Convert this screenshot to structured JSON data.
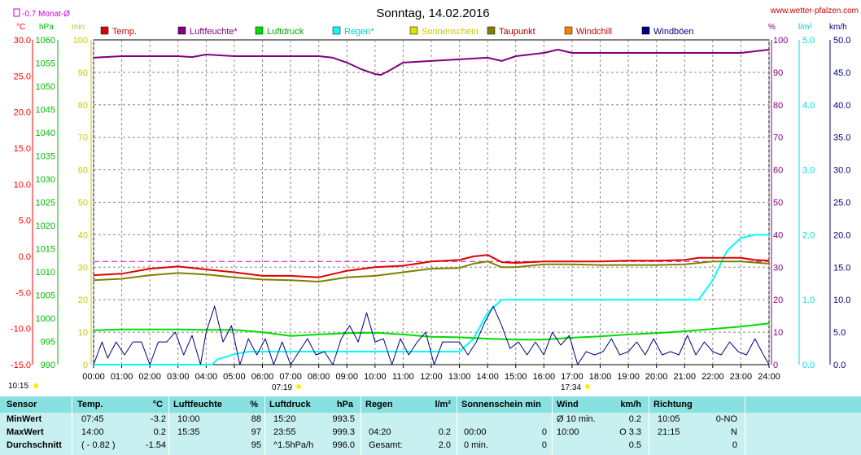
{
  "header": {
    "title": "Sonntag, 14.02.2016",
    "url": "www.wetter-pfalzen.com",
    "monat_label": "-0.7 Monat-Ø",
    "monat_color": "#cc00cc",
    "left_units": {
      "temp": "°C",
      "pressure": "hPa",
      "min": "min"
    },
    "right_units": {
      "percent": "%",
      "rain": "l/m²",
      "wind": "km/h"
    }
  },
  "legend": [
    {
      "label": "Temp.",
      "color": "#e00000",
      "text_color": "#cc0000"
    },
    {
      "label": "Luftfeuchte*",
      "color": "#800080",
      "text_color": "#800080"
    },
    {
      "label": "Luftdruck",
      "color": "#00dd00",
      "text_color": "#00aa00"
    },
    {
      "label": "Regen*",
      "color": "#00ffff",
      "text_color": "#00cccc"
    },
    {
      "label": "Sonnenschein",
      "color": "#e0e000",
      "text_color": "#c8c800"
    },
    {
      "label": "Taupunkt",
      "color": "#808000",
      "text_color": "#a00000"
    },
    {
      "label": "Windchill",
      "color": "#ff8000",
      "text_color": "#cc0000"
    },
    {
      "label": "Windböen",
      "color": "#000080",
      "text_color": "#000080"
    }
  ],
  "sun": {
    "sunrise_label": "07:19",
    "sunset_label": "17:34",
    "corner_label": "10:15"
  },
  "chart_data": {
    "type": "line",
    "title": "Sonntag, 14.02.2016",
    "x_unit": "hours",
    "x_ticks": [
      "00:00",
      "01:00",
      "02:00",
      "03:00",
      "04:00",
      "05:00",
      "06:00",
      "07:00",
      "08:00",
      "09:00",
      "10:00",
      "11:00",
      "12:00",
      "13:00",
      "14:00",
      "15:00",
      "16:00",
      "17:00",
      "18:00",
      "19:00",
      "20:00",
      "21:00",
      "22:00",
      "23:00",
      "24:00"
    ],
    "xlim": [
      0,
      24
    ],
    "grid": true,
    "axes": {
      "temp": {
        "label": "°C",
        "lim": [
          -15,
          30
        ],
        "ticks": [
          "30.0",
          "25.0",
          "20.0",
          "15.0",
          "10.0",
          "5.0",
          "0.0",
          "-5.0",
          "-10.0",
          "-15.0"
        ],
        "color": "#ff0000"
      },
      "pressure": {
        "label": "hPa",
        "lim": [
          990,
          1060
        ],
        "ticks": [
          "1060",
          "1055",
          "1050",
          "1045",
          "1040",
          "1035",
          "1030",
          "1025",
          "1020",
          "1015",
          "1010",
          "1005",
          "1000",
          "995",
          "990"
        ],
        "color": "#00bb00"
      },
      "sunshine_min": {
        "label": "min",
        "lim": [
          0,
          100
        ],
        "ticks": [
          "100",
          "90",
          "80",
          "70",
          "60",
          "50",
          "40",
          "30",
          "20",
          "10",
          "0"
        ],
        "color": "#c8c800"
      },
      "humidity": {
        "label": "%",
        "lim": [
          0,
          100
        ],
        "ticks": [
          "100",
          "90",
          "80",
          "70",
          "60",
          "50",
          "40",
          "30",
          "20",
          "10",
          "0"
        ],
        "color": "#800080"
      },
      "rain": {
        "label": "l/m²",
        "lim": [
          0,
          5
        ],
        "ticks": [
          "5.0",
          "4.0",
          "3.0",
          "2.0",
          "1.0",
          "0.0"
        ],
        "color": "#00e0e0"
      },
      "wind": {
        "label": "km/h",
        "lim": [
          0,
          50
        ],
        "ticks": [
          "50.0",
          "45.0",
          "40.0",
          "35.0",
          "30.0",
          "25.0",
          "20.0",
          "15.0",
          "10.0",
          "5.0",
          "0.0"
        ],
        "color": "#000080"
      }
    },
    "monthly_mean_temp": -0.7,
    "series": [
      {
        "name": "Temp.",
        "axis": "temp",
        "color": "#e00000",
        "x": [
          0,
          1,
          2,
          3,
          4,
          5,
          6,
          7,
          8,
          9,
          10,
          11,
          12,
          13,
          13.5,
          14,
          14.5,
          15,
          16,
          17,
          18,
          19,
          20,
          21,
          21.5,
          22,
          23,
          23.5,
          24
        ],
        "y": [
          -2.6,
          -2.4,
          -1.7,
          -1.4,
          -1.8,
          -2.2,
          -2.7,
          -2.7,
          -2.9,
          -2.0,
          -1.5,
          -1.3,
          -0.7,
          -0.5,
          0.0,
          0.2,
          -0.8,
          -0.9,
          -0.7,
          -0.7,
          -0.7,
          -0.6,
          -0.6,
          -0.5,
          -0.2,
          -0.2,
          -0.2,
          -0.5,
          -0.6
        ]
      },
      {
        "name": "Taupunkt",
        "axis": "temp",
        "color": "#808000",
        "x": [
          0,
          1,
          2,
          3,
          4,
          5,
          6,
          7,
          8,
          9,
          10,
          11,
          12,
          13,
          13.5,
          14,
          14.5,
          15,
          16,
          17,
          18,
          19,
          20,
          21,
          22,
          23,
          24
        ],
        "y": [
          -3.3,
          -3.1,
          -2.6,
          -2.3,
          -2.5,
          -2.9,
          -3.2,
          -3.3,
          -3.5,
          -2.9,
          -2.7,
          -2.2,
          -1.7,
          -1.6,
          -1.0,
          -0.7,
          -1.5,
          -1.5,
          -1.1,
          -1.1,
          -1.2,
          -1.2,
          -1.2,
          -1.1,
          -0.7,
          -0.7,
          -1.0
        ]
      },
      {
        "name": "Luftfeuchte*",
        "axis": "humidity",
        "color": "#800080",
        "x": [
          0,
          1,
          2,
          3,
          3.5,
          4,
          5,
          6,
          7,
          8,
          8.5,
          9,
          9.5,
          10,
          10.2,
          10.5,
          11,
          12,
          13,
          14,
          14.5,
          15,
          16,
          16.5,
          17,
          18,
          19,
          20,
          21,
          22,
          23,
          24
        ],
        "y": [
          94.5,
          95,
          95,
          95,
          94.7,
          95.5,
          95,
          95,
          95,
          95,
          94.5,
          93,
          91,
          89.5,
          89.2,
          90.5,
          93,
          93.5,
          94,
          94.5,
          93.5,
          95,
          96,
          97,
          96,
          96,
          96,
          96,
          96,
          96,
          96,
          97
        ]
      },
      {
        "name": "Luftdruck",
        "axis": "pressure",
        "color": "#00dd00",
        "x": [
          0,
          1,
          2,
          3,
          4,
          5,
          6,
          7,
          8,
          9,
          10,
          11,
          12,
          13,
          14,
          15,
          16,
          17,
          18,
          19,
          20,
          21,
          22,
          23,
          24
        ],
        "y": [
          997.4,
          997.6,
          997.6,
          997.6,
          997.5,
          997.5,
          997.0,
          996.2,
          996.5,
          996.8,
          996.9,
          996.5,
          996.0,
          995.9,
          995.6,
          995.4,
          995.4,
          995.8,
          996.1,
          996.5,
          996.8,
          997.2,
          997.7,
          998.2,
          998.9
        ]
      },
      {
        "name": "Regen*",
        "axis": "rain",
        "color": "#00ffff",
        "x": [
          0,
          4.2,
          4.4,
          5,
          5.5,
          6,
          7,
          8,
          9,
          10,
          11,
          12,
          13,
          13.5,
          14,
          14.5,
          15,
          15.5,
          16,
          17,
          18,
          19,
          20,
          21,
          21.5,
          22,
          22.5,
          23,
          23.5,
          24
        ],
        "y": [
          0,
          0,
          0.08,
          0.16,
          0.2,
          0.2,
          0.2,
          0.2,
          0.2,
          0.2,
          0.2,
          0.2,
          0.2,
          0.4,
          0.8,
          1.0,
          1.0,
          1.0,
          1.0,
          1.0,
          1.0,
          1.0,
          1.0,
          1.0,
          1.0,
          1.3,
          1.75,
          1.95,
          2.0,
          2.0
        ]
      },
      {
        "name": "Windböen",
        "axis": "wind",
        "color": "#000080",
        "x": [
          0,
          0.3,
          0.5,
          0.8,
          1.1,
          1.4,
          1.7,
          2.0,
          2.3,
          2.6,
          2.9,
          3.2,
          3.5,
          3.8,
          4.0,
          4.3,
          4.6,
          4.9,
          5.2,
          5.5,
          5.8,
          6.1,
          6.4,
          6.7,
          7.0,
          7.3,
          7.6,
          7.9,
          8.2,
          8.5,
          8.8,
          9.1,
          9.4,
          9.7,
          10.0,
          10.3,
          10.6,
          10.9,
          11.2,
          11.5,
          11.8,
          12.1,
          12.4,
          12.7,
          13.0,
          13.3,
          13.6,
          13.9,
          14.2,
          14.5,
          14.8,
          15.1,
          15.4,
          15.7,
          16.0,
          16.3,
          16.6,
          16.9,
          17.2,
          17.5,
          17.8,
          18.1,
          18.4,
          18.7,
          19.0,
          19.3,
          19.6,
          19.9,
          20.2,
          20.5,
          20.8,
          21.1,
          21.4,
          21.7,
          22.0,
          22.3,
          22.6,
          22.9,
          23.2,
          23.5,
          23.8,
          24.0
        ],
        "y": [
          0,
          3.5,
          1,
          3.5,
          1.5,
          3.5,
          3.5,
          0,
          3.5,
          3.5,
          5,
          1.5,
          4.5,
          0,
          5,
          9,
          3.5,
          6,
          0,
          4,
          1.5,
          4,
          0,
          3.5,
          0,
          2,
          4,
          1.5,
          2,
          0,
          4,
          6,
          3.5,
          8,
          3.5,
          4,
          0,
          4,
          1.5,
          3.5,
          5,
          0,
          3.5,
          3.5,
          3.5,
          1.5,
          3.5,
          6.5,
          9,
          6,
          2.5,
          3.5,
          1.5,
          3.5,
          1.5,
          5,
          3,
          4.5,
          0,
          2,
          1.5,
          2,
          4,
          1.5,
          2,
          3.5,
          1.5,
          4,
          1.5,
          2,
          1.5,
          4.5,
          1.5,
          3.5,
          2,
          1.5,
          3.5,
          2,
          1.5,
          4,
          1.5,
          0
        ]
      }
    ]
  },
  "stats": {
    "headers": {
      "sensor": "Sensor",
      "temp": "Temp.",
      "temp_unit": "°C",
      "hum": "Luftfeuchte",
      "hum_unit": "%",
      "press": "Luftdruck",
      "press_unit": "hPa",
      "rain": "Regen",
      "rain_unit": "l/m²",
      "sun": "Sonnenschein min",
      "wind": "Wind",
      "wind_unit": "km/h",
      "dir": "Richtung"
    },
    "rows": [
      {
        "label": "MinWert",
        "temp_time": "07:45",
        "temp_val": "-3.2",
        "hum_time": "10:00",
        "hum_val": "88",
        "press_time": "15:20",
        "press_val": "993.5",
        "rain_time": "",
        "rain_val": "",
        "sun_time": "",
        "sun_val": "",
        "wind_time": "Ø 10 min.",
        "wind_val": "0.2",
        "dir_time": "10:05",
        "dir_val": "0-NO"
      },
      {
        "label": "MaxWert",
        "temp_time": "14:00",
        "temp_val": "0.2",
        "hum_time": "15:35",
        "hum_val": "97",
        "press_time": "23:55",
        "press_val": "999.3",
        "rain_time": "04:20",
        "rain_val": "0.2",
        "sun_time": "00:00",
        "sun_val": "0",
        "wind_time": "10:00",
        "wind_val": "O 3.3",
        "dir_time": "21:15",
        "dir_val": "N"
      },
      {
        "label": "Durchschnitt",
        "temp_time": "( - 0.82 )",
        "temp_val": "-1.54",
        "hum_time": "",
        "hum_val": "95",
        "press_time": "^1.5hPa/h",
        "press_val": "996.0",
        "rain_time": "Gesamt:",
        "rain_val": "2.0",
        "sun_time": "0 min.",
        "sun_val": "0",
        "wind_time": "",
        "wind_val": "0.5",
        "dir_time": "",
        "dir_val": "0"
      }
    ]
  }
}
